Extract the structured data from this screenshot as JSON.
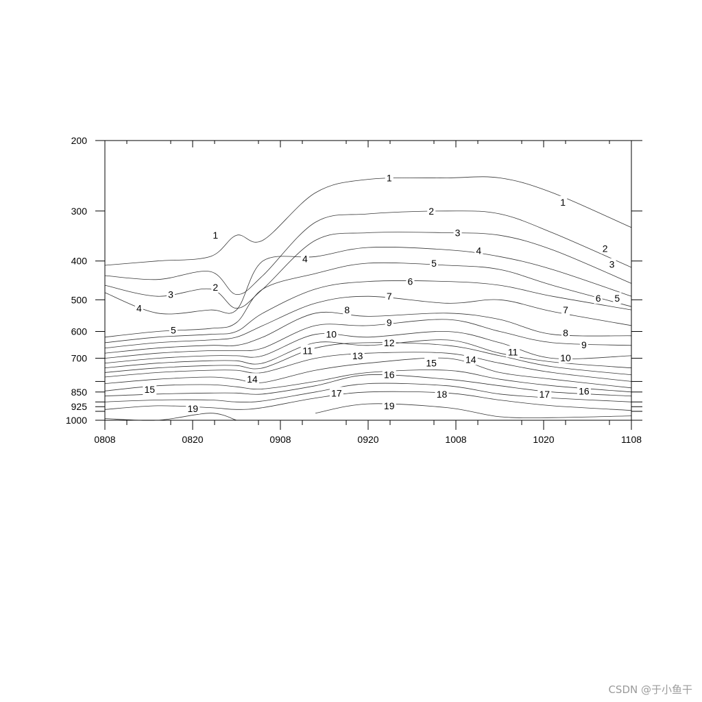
{
  "chart_data": {
    "type": "contour",
    "title": "",
    "xlabel": "",
    "ylabel": "",
    "x_ticks": [
      "0808",
      "0820",
      "0908",
      "0920",
      "1008",
      "1020",
      "1108"
    ],
    "y_ticks": [
      200,
      300,
      400,
      500,
      600,
      700,
      850,
      925,
      1000
    ],
    "y_scale": "log-pressure",
    "y_inverted": true,
    "ylim": [
      200,
      1000
    ],
    "grid": false,
    "contours": [
      {
        "level": 1,
        "pressure": [
          410,
          400,
          390,
          345,
          355,
          270,
          250,
          248,
          248,
          270,
          330
        ],
        "labels": [
          {
            "x": 0.21,
            "p": 345
          },
          {
            "x": 0.54,
            "p": 248
          },
          {
            "x": 0.87,
            "p": 285
          }
        ]
      },
      {
        "level": 2,
        "pressure": [
          435,
          445,
          425,
          485,
          435,
          320,
          305,
          300,
          305,
          340,
          415
        ],
        "labels": [
          {
            "x": 0.21,
            "p": 465
          },
          {
            "x": 0.62,
            "p": 300
          },
          {
            "x": 0.95,
            "p": 372
          }
        ]
      },
      {
        "level": 3,
        "pressure": [
          460,
          490,
          470,
          525,
          470,
          355,
          340,
          340,
          345,
          375,
          455
        ],
        "labels": [
          {
            "x": 0.125,
            "p": 485
          },
          {
            "x": 0.67,
            "p": 340
          },
          {
            "x": 0.963,
            "p": 408
          }
        ]
      },
      {
        "level": 4,
        "pressure": [
          480,
          540,
          530,
          530,
          400,
          390,
          370,
          375,
          390,
          420,
          490
        ],
        "labels": [
          {
            "x": 0.065,
            "p": 525
          },
          {
            "x": 0.38,
            "p": 395
          },
          {
            "x": 0.71,
            "p": 377
          }
        ]
      },
      {
        "level": 5,
        "pressure": [
          620,
          600,
          590,
          570,
          470,
          430,
          405,
          410,
          420,
          460,
          520
        ],
        "labels": [
          {
            "x": 0.13,
            "p": 595
          },
          {
            "x": 0.625,
            "p": 405
          },
          {
            "x": 0.973,
            "p": 496
          }
        ]
      },
      {
        "level": 6,
        "pressure": [
          640,
          620,
          610,
          600,
          540,
          470,
          450,
          450,
          460,
          490,
          530
        ],
        "labels": [
          {
            "x": 0.58,
            "p": 450
          },
          {
            "x": 0.937,
            "p": 496
          }
        ]
      },
      {
        "level": 7,
        "pressure": [
          660,
          640,
          630,
          620,
          580,
          510,
          490,
          510,
          500,
          535,
          580
        ],
        "labels": [
          {
            "x": 0.54,
            "p": 490
          },
          {
            "x": 0.875,
            "p": 530
          }
        ]
      },
      {
        "level": 8,
        "pressure": [
          680,
          660,
          650,
          650,
          620,
          540,
          550,
          540,
          560,
          610,
          615
        ],
        "labels": [
          {
            "x": 0.46,
            "p": 530
          },
          {
            "x": 0.875,
            "p": 605
          }
        ]
      },
      {
        "level": 9,
        "pressure": [
          700,
          680,
          670,
          670,
          660,
          580,
          580,
          560,
          600,
          640,
          650
        ],
        "labels": [
          {
            "x": 0.54,
            "p": 570
          },
          {
            "x": 0.91,
            "p": 648
          }
        ]
      },
      {
        "level": 10,
        "pressure": [
          720,
          700,
          690,
          690,
          690,
          610,
          620,
          600,
          640,
          700,
          690
        ],
        "labels": [
          {
            "x": 0.43,
            "p": 610
          },
          {
            "x": 0.875,
            "p": 698
          }
        ]
      },
      {
        "level": 11,
        "pressure": [
          740,
          720,
          710,
          710,
          720,
          640,
          650,
          630,
          680,
          715,
          740
        ],
        "labels": [
          {
            "x": 0.385,
            "p": 670
          },
          {
            "x": 0.775,
            "p": 675
          }
        ]
      },
      {
        "level": 12,
        "pressure": [
          760,
          740,
          730,
          730,
          740,
          660,
          640,
          650,
          690,
          735,
          770
        ],
        "labels": [
          {
            "x": 0.54,
            "p": 640
          }
        ]
      },
      {
        "level": 13,
        "pressure": [
          780,
          760,
          750,
          750,
          760,
          700,
          680,
          680,
          720,
          760,
          800
        ],
        "labels": [
          {
            "x": 0.48,
            "p": 690
          }
        ]
      },
      {
        "level": 14,
        "pressure": [
          810,
          790,
          780,
          790,
          805,
          750,
          720,
          700,
          760,
          790,
          830
        ],
        "labels": [
          {
            "x": 0.28,
            "p": 790
          },
          {
            "x": 0.695,
            "p": 705
          }
        ]
      },
      {
        "level": 15,
        "pressure": [
          845,
          820,
          815,
          825,
          835,
          800,
          760,
          750,
          790,
          820,
          850
        ],
        "labels": [
          {
            "x": 0.085,
            "p": 838
          },
          {
            "x": 0.62,
            "p": 720
          }
        ]
      },
      {
        "level": 16,
        "pressure": [
          870,
          860,
          855,
          855,
          860,
          820,
          770,
          790,
          820,
          850,
          870
        ],
        "labels": [
          {
            "x": 0.54,
            "p": 770
          },
          {
            "x": 0.91,
            "p": 845
          }
        ]
      },
      {
        "level": 17,
        "pressure": [
          900,
          890,
          890,
          900,
          895,
          850,
          810,
          820,
          860,
          880,
          900
        ],
        "labels": [
          {
            "x": 0.44,
            "p": 855
          },
          {
            "x": 0.835,
            "p": 860
          }
        ]
      },
      {
        "level": 18,
        "pressure": [
          940,
          920,
          930,
          940,
          930,
          880,
          850,
          855,
          890,
          920,
          945
        ],
        "labels": [
          {
            "x": 0.64,
            "p": 860
          }
        ]
      },
      {
        "level": 19,
        "pressure": [
          990,
          1000,
          960,
          1000,
          null,
          960,
          910,
          930,
          980,
          985,
          975
        ],
        "labels": [
          {
            "x": 0.167,
            "p": 935
          },
          {
            "x": 0.54,
            "p": 920
          }
        ]
      }
    ],
    "x_positions": [
      0,
      0.1,
      0.2,
      0.25,
      0.3,
      0.4,
      0.5,
      0.65,
      0.75,
      0.85,
      1.0
    ]
  },
  "watermark": "CSDN @于小鱼干",
  "colors": {
    "line": "#333333",
    "axis": "#000000",
    "watermark": "#9a9a9a"
  }
}
